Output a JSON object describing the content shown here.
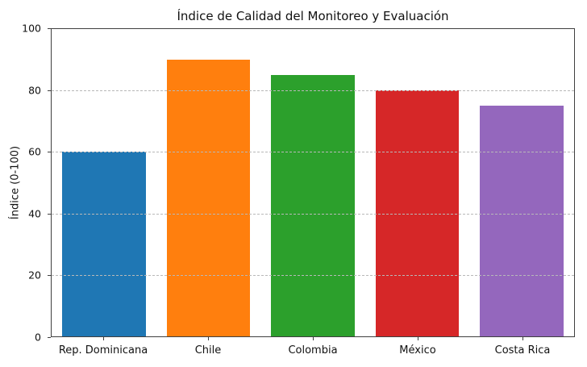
{
  "chart_data": {
    "type": "bar",
    "title": "Índice de Calidad del Monitoreo y Evaluación",
    "ylabel": "Índice (0-100)",
    "xlabel": "",
    "categories": [
      "Rep. Dominicana",
      "Chile",
      "Colombia",
      "México",
      "Costa Rica"
    ],
    "values": [
      60,
      90,
      85,
      80,
      75
    ],
    "bar_colors": [
      "#1f77b4",
      "#ff7f0e",
      "#2ca02c",
      "#d62728",
      "#9467bd"
    ],
    "ylim": [
      0,
      100
    ],
    "yticks": [
      0,
      20,
      40,
      60,
      80,
      100
    ],
    "grid": "horizontal-dashed",
    "legend": "none"
  }
}
